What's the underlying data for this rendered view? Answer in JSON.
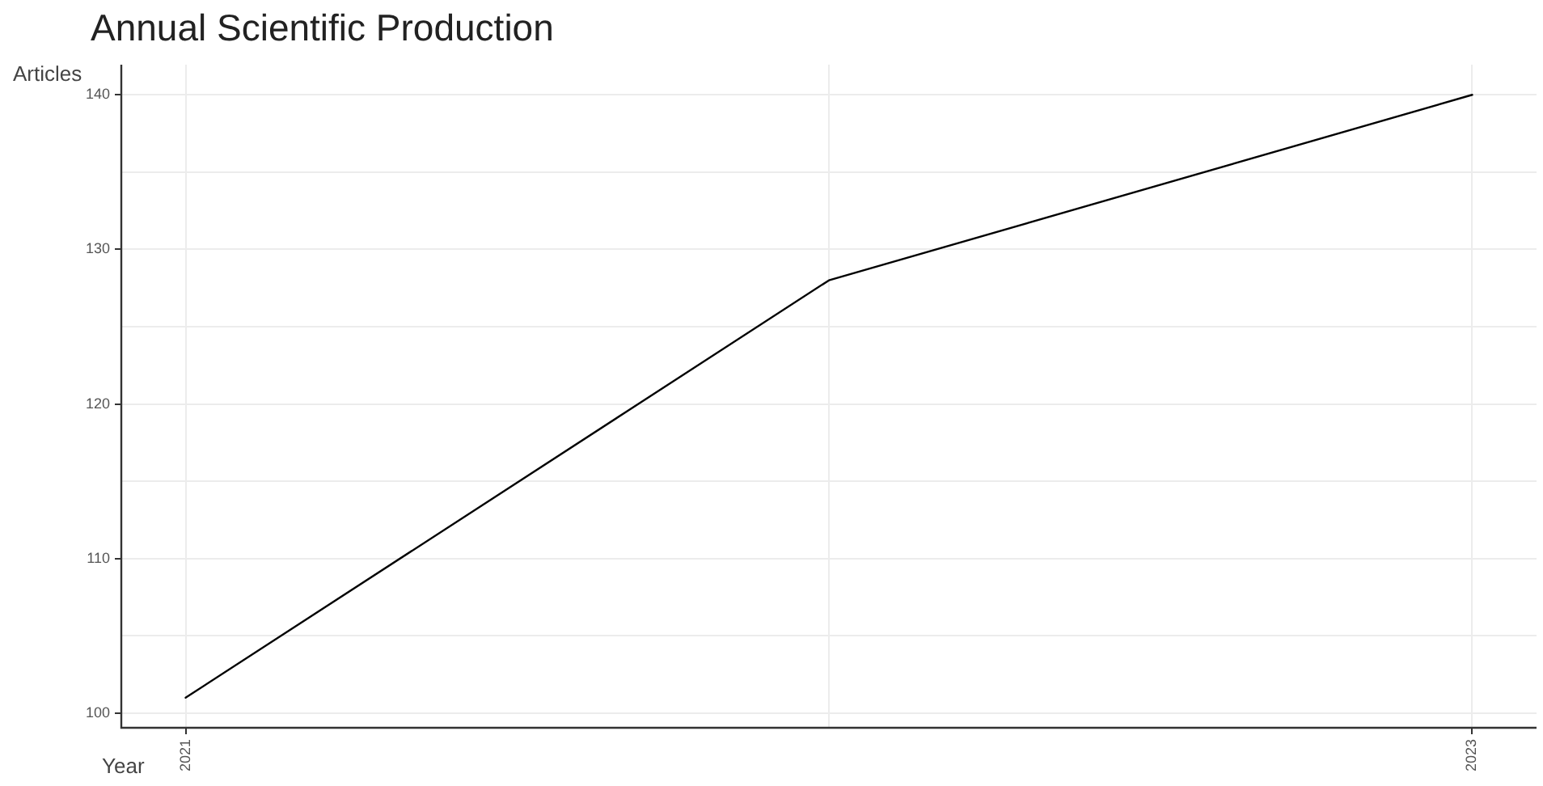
{
  "chart_data": {
    "type": "line",
    "title": "Annual Scientific Production",
    "xlabel": "Year",
    "ylabel": "Articles",
    "x": [
      2021,
      2022,
      2023
    ],
    "series": [
      {
        "color": "#000000",
        "values": [
          101,
          128,
          140
        ]
      }
    ],
    "xlim": [
      2020.9,
      2023.1
    ],
    "xticks": [
      2021,
      {
        "value": 2022,
        "label": null
      },
      2023
    ],
    "ylim": [
      99.05,
      141.95
    ],
    "yticks": [
      100,
      {
        "value": 105,
        "label": null
      },
      110,
      {
        "value": 115,
        "label": null
      },
      120,
      {
        "value": 125,
        "label": null
      },
      130,
      {
        "value": 135,
        "label": null
      },
      140
    ],
    "grid": true,
    "legend": false,
    "marker": "none",
    "line_style": "solid"
  }
}
